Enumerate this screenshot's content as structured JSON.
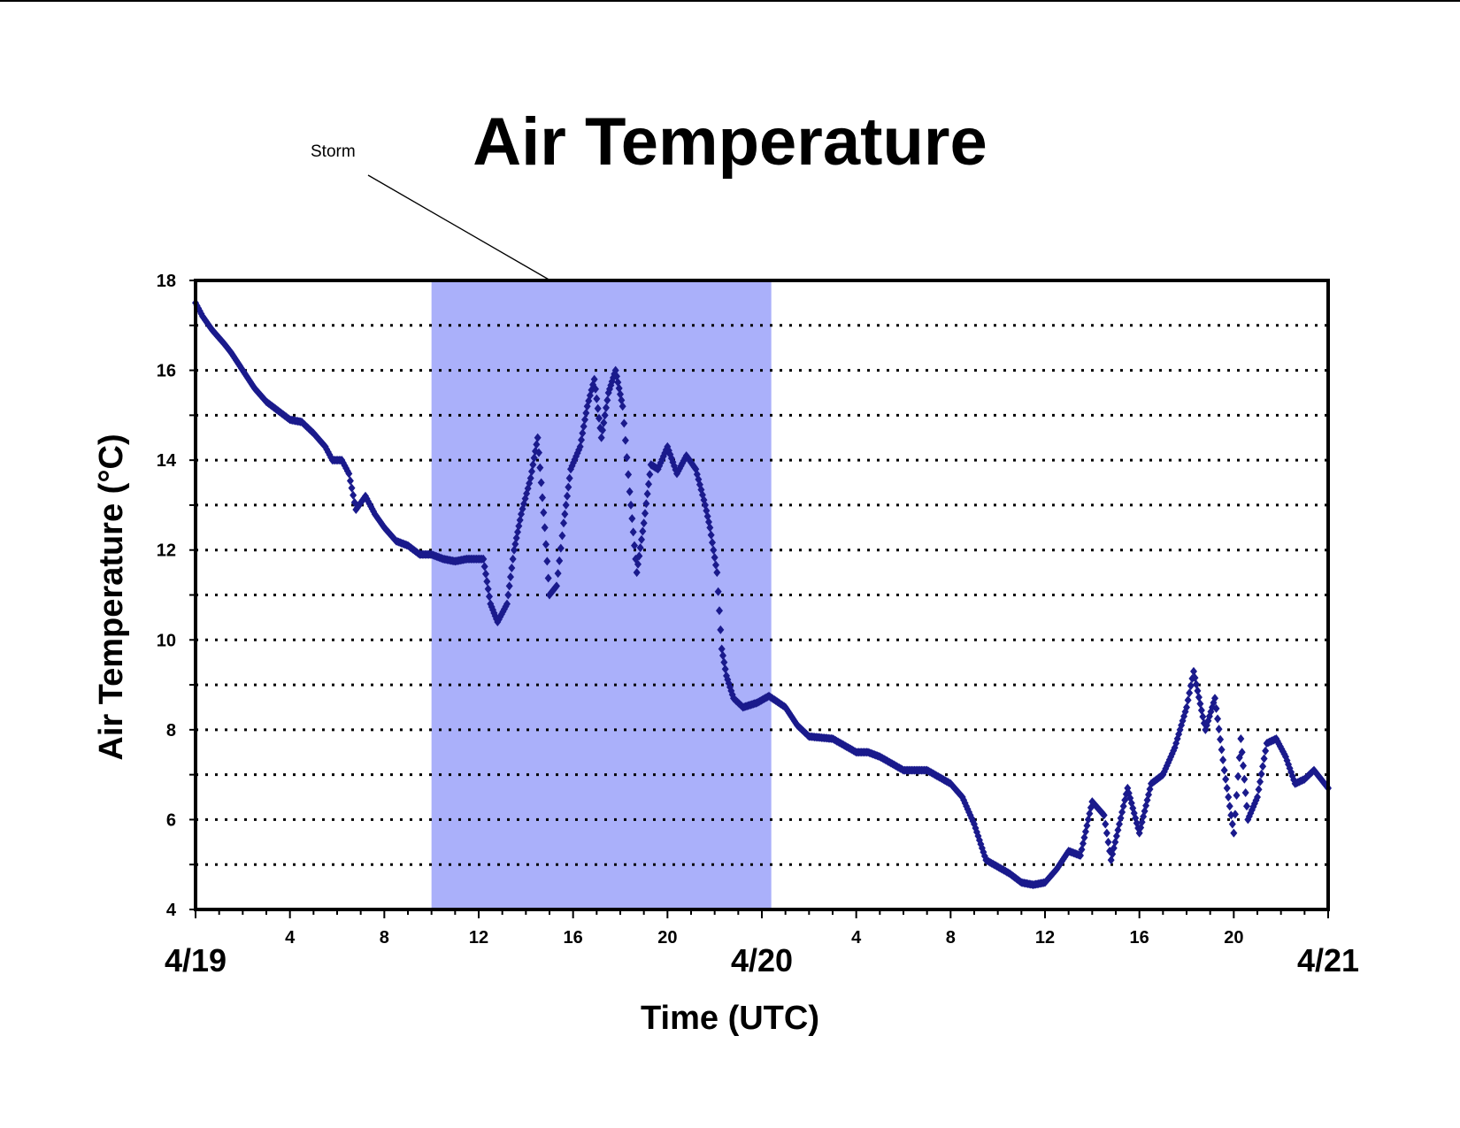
{
  "chart_data": {
    "type": "scatter",
    "title": "Air Temperature",
    "xlabel": "Time (UTC)",
    "ylabel": "Air Temperature (°C)",
    "ylim": [
      4,
      18
    ],
    "yticks": [
      4,
      6,
      8,
      10,
      12,
      14,
      16,
      18
    ],
    "xlim_hours": [
      0,
      48
    ],
    "hour_tick_labels": [
      {
        "hour": 4,
        "label": "4"
      },
      {
        "hour": 8,
        "label": "8"
      },
      {
        "hour": 12,
        "label": "12"
      },
      {
        "hour": 16,
        "label": "16"
      },
      {
        "hour": 20,
        "label": "20"
      },
      {
        "hour": 28,
        "label": "4"
      },
      {
        "hour": 32,
        "label": "8"
      },
      {
        "hour": 36,
        "label": "12"
      },
      {
        "hour": 40,
        "label": "16"
      },
      {
        "hour": 44,
        "label": "20"
      }
    ],
    "date_labels": [
      {
        "hour": 0,
        "label": "4/19"
      },
      {
        "hour": 24,
        "label": "4/20"
      },
      {
        "hour": 48,
        "label": "4/21"
      }
    ],
    "grid": "horizontal dotted, every 1 °C",
    "marker_color": "#1a1a8c",
    "shaded_region": {
      "label": "Storm",
      "x_start_hour": 10,
      "x_end_hour": 24.4,
      "color": "#aab0fa"
    },
    "series": [
      {
        "values_hour_temp": [
          [
            0,
            17.5
          ],
          [
            0.3,
            17.2
          ],
          [
            0.7,
            16.9
          ],
          [
            1.2,
            16.6
          ],
          [
            1.5,
            16.4
          ],
          [
            2,
            16.0
          ],
          [
            2.5,
            15.6
          ],
          [
            3,
            15.3
          ],
          [
            3.5,
            15.1
          ],
          [
            4,
            14.9
          ],
          [
            4.5,
            14.85
          ],
          [
            5,
            14.6
          ],
          [
            5.5,
            14.3
          ],
          [
            5.8,
            14.0
          ],
          [
            6.2,
            14.0
          ],
          [
            6.5,
            13.7
          ],
          [
            6.8,
            12.9
          ],
          [
            7.2,
            13.2
          ],
          [
            7.6,
            12.8
          ],
          [
            8,
            12.5
          ],
          [
            8.5,
            12.2
          ],
          [
            9,
            12.1
          ],
          [
            9.5,
            11.9
          ],
          [
            10,
            11.9
          ],
          [
            10.5,
            11.8
          ],
          [
            11,
            11.75
          ],
          [
            11.5,
            11.8
          ],
          [
            12.2,
            11.8
          ],
          [
            12.5,
            10.8
          ],
          [
            12.8,
            10.4
          ],
          [
            13.2,
            10.8
          ],
          [
            13.5,
            12.0
          ],
          [
            13.8,
            12.8
          ],
          [
            14.2,
            13.6
          ],
          [
            14.5,
            14.5
          ],
          [
            14.8,
            12.5
          ],
          [
            15.0,
            11.0
          ],
          [
            15.3,
            11.2
          ],
          [
            15.6,
            12.6
          ],
          [
            15.9,
            13.8
          ],
          [
            16.3,
            14.3
          ],
          [
            16.6,
            15.2
          ],
          [
            16.9,
            15.8
          ],
          [
            17.2,
            14.5
          ],
          [
            17.5,
            15.5
          ],
          [
            17.8,
            16.0
          ],
          [
            18.1,
            15.2
          ],
          [
            18.4,
            13.3
          ],
          [
            18.7,
            11.5
          ],
          [
            19.0,
            12.6
          ],
          [
            19.3,
            13.9
          ],
          [
            19.6,
            13.8
          ],
          [
            20.0,
            14.3
          ],
          [
            20.4,
            13.7
          ],
          [
            20.8,
            14.1
          ],
          [
            21.2,
            13.8
          ],
          [
            21.6,
            13.0
          ],
          [
            21.8,
            12.5
          ],
          [
            22.1,
            11.5
          ],
          [
            22.3,
            9.8
          ],
          [
            22.5,
            9.2
          ],
          [
            22.8,
            8.7
          ],
          [
            23.2,
            8.5
          ],
          [
            23.8,
            8.6
          ],
          [
            24.3,
            8.75
          ],
          [
            25.0,
            8.5
          ],
          [
            25.5,
            8.1
          ],
          [
            26.0,
            7.85
          ],
          [
            27.0,
            7.8
          ],
          [
            28.0,
            7.5
          ],
          [
            28.5,
            7.5
          ],
          [
            29.0,
            7.4
          ],
          [
            30.0,
            7.1
          ],
          [
            31.0,
            7.1
          ],
          [
            32.0,
            6.8
          ],
          [
            32.5,
            6.5
          ],
          [
            33.0,
            5.9
          ],
          [
            33.5,
            5.1
          ],
          [
            34.5,
            4.8
          ],
          [
            35.0,
            4.6
          ],
          [
            35.5,
            4.55
          ],
          [
            36.0,
            4.6
          ],
          [
            36.5,
            4.9
          ],
          [
            37.0,
            5.3
          ],
          [
            37.5,
            5.2
          ],
          [
            38.0,
            6.4
          ],
          [
            38.5,
            6.1
          ],
          [
            38.8,
            5.1
          ],
          [
            39.5,
            6.7
          ],
          [
            40.0,
            5.7
          ],
          [
            40.5,
            6.8
          ],
          [
            41.0,
            7.0
          ],
          [
            41.5,
            7.6
          ],
          [
            42.0,
            8.5
          ],
          [
            42.3,
            9.3
          ],
          [
            42.8,
            8.0
          ],
          [
            43.2,
            8.7
          ],
          [
            43.6,
            7.1
          ],
          [
            44.0,
            5.7
          ],
          [
            44.3,
            7.8
          ],
          [
            44.6,
            6.0
          ],
          [
            45.0,
            6.5
          ],
          [
            45.4,
            7.7
          ],
          [
            45.8,
            7.8
          ],
          [
            46.2,
            7.4
          ],
          [
            46.6,
            6.8
          ],
          [
            47.0,
            6.9
          ],
          [
            47.4,
            7.1
          ],
          [
            48.0,
            6.7
          ]
        ]
      }
    ]
  }
}
